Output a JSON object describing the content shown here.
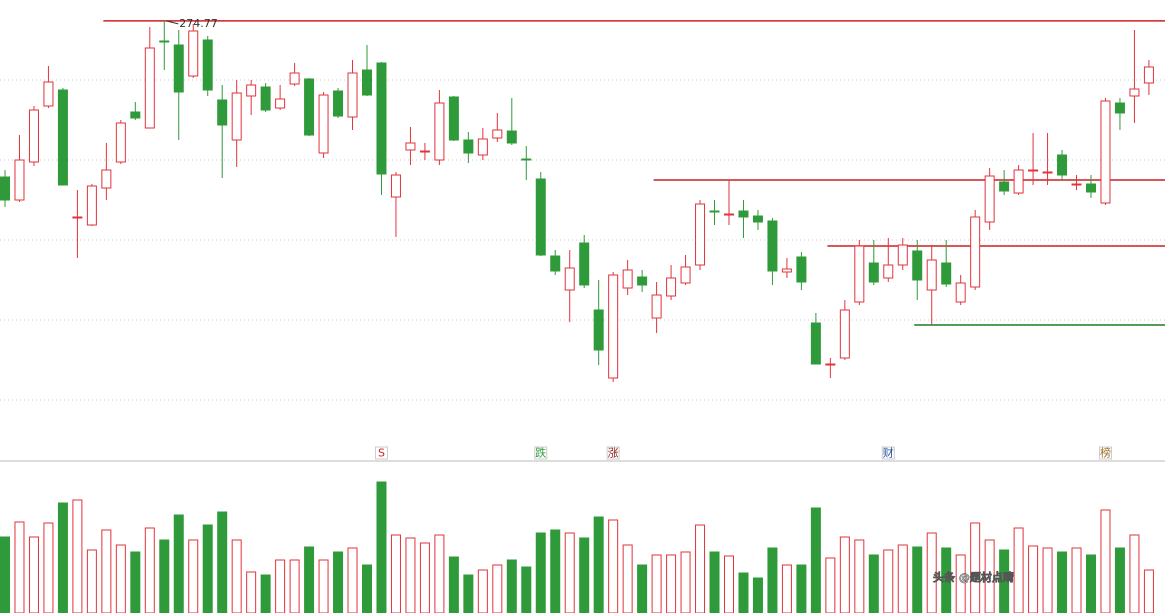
{
  "chart_data": {
    "type": "candlestick",
    "up_color": "#e2333b",
    "down_color": "#2f9a3a",
    "ylim": [
      180,
      280
    ],
    "ygrid": [
      180,
      200,
      220,
      240,
      260
    ],
    "open": [
      235.75,
      230,
      239.5,
      253.5,
      257.5,
      225.5,
      223.75,
      233,
      239.5,
      252,
      248,
      269.75,
      268.75,
      261,
      270,
      255,
      245,
      256,
      258.25,
      253,
      259,
      260.25,
      241.75,
      257.25,
      250.75,
      262.5,
      264.25,
      230.75,
      242.5,
      242,
      240,
      255.75,
      245,
      241.25,
      245.5,
      247.25,
      240.25,
      235.25,
      216,
      207.5,
      219.25,
      202.5,
      185.5,
      208,
      210.75,
      200.5,
      206,
      209.25,
      213.75,
      227.25,
      226.25,
      227.25,
      226,
      224.75,
      212,
      215.75,
      199.25,
      188.75,
      190.5,
      204.5,
      214.25,
      210.5,
      213.75,
      217.25,
      207.5,
      214.25,
      204.5,
      208.25,
      224.5,
      234.5,
      231.75,
      237.5,
      236.75,
      241.25,
      234,
      234,
      229.25,
      254.25,
      256,
      259.25
    ],
    "high": [
      237.5,
      246.25,
      253.5,
      263.5,
      258,
      232.5,
      234,
      244.25,
      250,
      254.5,
      273.25,
      274.77,
      272.5,
      274,
      271,
      258.75,
      260,
      260,
      259.25,
      258.75,
      264.25,
      260.5,
      257,
      258,
      265,
      268.75,
      264.5,
      237,
      248.25,
      244.25,
      257.5,
      256,
      247,
      248,
      251.75,
      255.5,
      243.5,
      237,
      217.5,
      217.5,
      221.25,
      210,
      212,
      215,
      212.5,
      209.5,
      213.75,
      216.25,
      230,
      230,
      235,
      230,
      227.5,
      225.5,
      215.5,
      217,
      201.75,
      190.5,
      205,
      220,
      220,
      220.5,
      220.5,
      220,
      218.75,
      220,
      211.25,
      227.5,
      238,
      237.5,
      238.75,
      246.75,
      246.75,
      242.5,
      236.25,
      236.25,
      255.5,
      255.5,
      272.5,
      265
    ],
    "low": [
      228.25,
      229.5,
      238.5,
      253,
      233.75,
      215.5,
      223.5,
      230,
      239,
      250,
      248,
      262.5,
      245,
      260.5,
      256,
      235.5,
      238.25,
      251.25,
      252,
      252.5,
      258.5,
      246,
      240.5,
      250.5,
      247.5,
      256,
      231.25,
      220.75,
      238.75,
      240,
      238.75,
      244.75,
      239.25,
      240,
      244.5,
      243.75,
      235,
      216,
      211.25,
      199.5,
      208,
      188.75,
      184.5,
      206.25,
      207,
      196.75,
      205,
      208.75,
      212.5,
      223.75,
      223.75,
      220.5,
      222.5,
      208.75,
      210.5,
      207.5,
      189,
      185.5,
      190,
      203.75,
      208.75,
      209.5,
      212.5,
      205,
      198.75,
      208.25,
      203.75,
      207.5,
      222.5,
      231.25,
      231.25,
      233.75,
      233.75,
      235,
      232.5,
      230.5,
      228.75,
      247.5,
      249.25,
      256.25
    ],
    "close": [
      230,
      240,
      252.5,
      259.5,
      233.75,
      225.75,
      233.5,
      237.5,
      249.25,
      250.5,
      268,
      269.5,
      257,
      272.25,
      257.5,
      248.75,
      256.75,
      258.75,
      252.5,
      255.25,
      261.75,
      246.25,
      256.25,
      251,
      261.75,
      256.25,
      236.5,
      236.25,
      244.25,
      242.25,
      254.25,
      245,
      241.75,
      245.25,
      247.5,
      244.25,
      240,
      216.25,
      212.25,
      213,
      208.75,
      192.5,
      211.25,
      212.5,
      208.75,
      206.25,
      210.5,
      213.25,
      229,
      227,
      226.5,
      225.75,
      224.5,
      212.25,
      212.75,
      209.5,
      189,
      189,
      202.5,
      218.5,
      209.5,
      213.75,
      218.75,
      210,
      215,
      209,
      209.25,
      225.75,
      236,
      232.25,
      237.5,
      237.5,
      237,
      236.25,
      234,
      232,
      254.75,
      251.75,
      257.75,
      263.25
    ],
    "volume": [
      76,
      91,
      76,
      90,
      110,
      113,
      63,
      83,
      68,
      61,
      85,
      73,
      98,
      73,
      88,
      101,
      73,
      41,
      38,
      53,
      53,
      66,
      53,
      61,
      65,
      48,
      131,
      78,
      75,
      70,
      78,
      56,
      38,
      43,
      48,
      53,
      46,
      80,
      83,
      80,
      75,
      96,
      93,
      68,
      48,
      58,
      58,
      61,
      88,
      61,
      57,
      40,
      35,
      65,
      48,
      48,
      105,
      55,
      76,
      73,
      58,
      63,
      68,
      66,
      80,
      65,
      58,
      90,
      73,
      63,
      85,
      67,
      65,
      61,
      65,
      58,
      103,
      65,
      78,
      43
    ],
    "vlim": [
      0,
      151
    ],
    "levels": [
      {
        "value": 274.77,
        "color": "#cc2020",
        "start": 7
      },
      {
        "value": 235,
        "color": "#cc2020",
        "start": 45
      },
      {
        "value": 218.5,
        "color": "#cc2020",
        "start": 57
      },
      {
        "value": 198.75,
        "color": "#1f7a1f",
        "start": 63
      }
    ],
    "markers": [
      {
        "index": 26,
        "text": "S",
        "color": "#d42020"
      },
      {
        "index": 37,
        "text": "跌",
        "color": "#2f9a3a"
      },
      {
        "index": 42,
        "text": "涨",
        "color": "#8b1a1a"
      },
      {
        "index": 61,
        "text": "财",
        "color": "#1f4f9a"
      },
      {
        "index": 76,
        "text": "榜",
        "color": "#9a6a1f"
      }
    ],
    "watermark": "头条 @题材点睛"
  }
}
